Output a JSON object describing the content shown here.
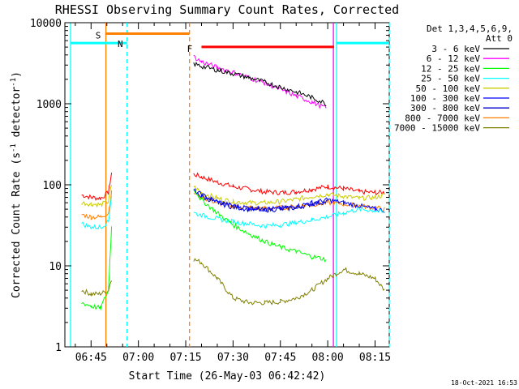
{
  "chart_data": {
    "type": "line",
    "title": "RHESSI Observing Summary Count Rates, Corrected",
    "xlabel": "Start Time (26-May-03 06:42:42)",
    "ylabel_main": "Corrected Count Rate (s",
    "ylabel_sup1": "-1",
    "ylabel_mid": " detector",
    "ylabel_sup2": "-1",
    "ylabel_end": ")",
    "y_scale": "log",
    "ylim": [
      1,
      10000
    ],
    "xlim_minutes": [
      6.7,
      99.5
    ],
    "x_ticks": [
      {
        "label": "06:45",
        "minute": 45
      },
      {
        "label": "07:00",
        "minute": 60
      },
      {
        "label": "07:15",
        "minute": 75
      },
      {
        "label": "07:30",
        "minute": 90
      },
      {
        "label": "07:45",
        "minute": 105
      },
      {
        "label": "08:00",
        "minute": 120
      },
      {
        "label": "08:15",
        "minute": 135
      }
    ],
    "y_ticks": [
      {
        "label": "1",
        "value": 1
      },
      {
        "label": "10",
        "value": 10
      },
      {
        "label": "100",
        "value": 100
      },
      {
        "label": "1000",
        "value": 1000
      },
      {
        "label": "10000",
        "value": 10000
      }
    ],
    "legend_header1": "Det 1,3,4,5,6,9,",
    "legend_header2": "Att 0",
    "legend_position": "right",
    "series": [
      {
        "name": "3 - 6 keV",
        "color": "#000000",
        "x": [
          77.5,
          80,
          85,
          90,
          95,
          100,
          105,
          110,
          115,
          119.5
        ],
        "y": [
          3100,
          2900,
          2600,
          2350,
          2100,
          1850,
          1600,
          1400,
          1200,
          1000
        ]
      },
      {
        "name": "6 - 12 keV",
        "color": "#ff00ff",
        "x": [
          77.5,
          80,
          85,
          90,
          95,
          100,
          105,
          110,
          115,
          119.5
        ],
        "y": [
          3800,
          3300,
          2800,
          2450,
          2100,
          1800,
          1500,
          1250,
          1050,
          880
        ]
      },
      {
        "name": "12 - 25 keV",
        "color": "#00ff00",
        "x": [
          42,
          45,
          48,
          50.5,
          51.5,
          77.5,
          80,
          85,
          90,
          95,
          100,
          105,
          110,
          115,
          119.5
        ],
        "y": [
          3.5,
          3.2,
          3,
          5,
          30,
          90,
          65,
          45,
          32,
          25,
          20,
          17,
          15,
          13,
          12
        ]
      },
      {
        "name": "25 - 50 keV",
        "color": "#00ffff",
        "x": [
          42,
          45,
          48,
          50.5,
          51.5,
          77.5,
          80,
          85,
          90,
          95,
          100,
          105,
          110,
          115,
          120,
          125,
          130,
          135,
          138
        ],
        "y": [
          33,
          30,
          30,
          35,
          75,
          45,
          42,
          38,
          35,
          33,
          31,
          32,
          34,
          37,
          40,
          45,
          50,
          48,
          45
        ]
      },
      {
        "name": "50 - 100 keV",
        "color": "#cccc00",
        "x": [
          42,
          45,
          48,
          50.5,
          51.5,
          77.5,
          80,
          85,
          90,
          95,
          100,
          105,
          110,
          115,
          120,
          125,
          130,
          135,
          138
        ],
        "y": [
          60,
          58,
          57,
          62,
          100,
          95,
          80,
          68,
          62,
          60,
          60,
          62,
          66,
          72,
          76,
          72,
          68,
          70,
          75
        ]
      },
      {
        "name": "100 - 300 keV",
        "color": "#0000ff",
        "x": [
          77.5,
          80,
          85,
          90,
          95,
          100,
          105,
          110,
          115,
          120,
          125,
          130,
          135,
          138
        ],
        "y": [
          85,
          75,
          62,
          55,
          52,
          50,
          51,
          54,
          60,
          65,
          60,
          55,
          50,
          48
        ]
      },
      {
        "name": "300 - 800 keV",
        "color": "#0000cc",
        "x": [
          77.5,
          80,
          85,
          90,
          95,
          100,
          105,
          110,
          115,
          120
        ],
        "y": [
          82,
          72,
          60,
          53,
          50,
          49,
          50,
          52,
          58,
          62
        ]
      },
      {
        "name": "800 - 7000 keV",
        "color": "#ff8000",
        "x": [
          42,
          45,
          48,
          50.5,
          51.5,
          77.5,
          80,
          85,
          90,
          95,
          100,
          105,
          110,
          115,
          120,
          125,
          130,
          135,
          138
        ],
        "y": [
          43,
          40,
          40,
          45,
          80,
          80,
          70,
          60,
          54,
          52,
          51,
          52,
          54,
          57,
          60,
          58,
          55,
          52,
          50
        ]
      },
      {
        "name": "7000 - 15000 keV",
        "color": "#808000",
        "x": [
          42,
          45,
          48,
          50.5,
          51.5,
          77.5,
          80,
          85,
          90,
          95,
          100,
          105,
          110,
          115,
          120,
          125,
          130,
          135,
          138
        ],
        "y": [
          5,
          4.5,
          4.5,
          5,
          7,
          12,
          11,
          7,
          4,
          3.5,
          3.5,
          3.6,
          4,
          5,
          7,
          9,
          8,
          7,
          5
        ]
      },
      {
        "name": "red_top",
        "color": "#ff0000",
        "x": [
          42,
          45,
          48,
          50.5,
          51.5,
          77.5,
          80,
          85,
          90,
          95,
          100,
          105,
          110,
          115,
          120,
          125,
          130,
          135,
          138
        ],
        "y": [
          75,
          70,
          68,
          80,
          140,
          135,
          125,
          108,
          95,
          88,
          82,
          80,
          82,
          88,
          95,
          90,
          82,
          80,
          80
        ]
      }
    ],
    "annotations": [
      {
        "label": "S",
        "color": "#ff8000",
        "x": 49.5,
        "y": 7000,
        "bar_from": 49.5,
        "bar_to": 76.2
      },
      {
        "label": "N",
        "color": "#00ffff",
        "x": 56.5,
        "y": 5500
      },
      {
        "label": "F",
        "color": "#ff0000",
        "x": 78.5,
        "y": 4800,
        "bar_from": 80,
        "bar_to": 122
      }
    ],
    "saa_bars": [
      {
        "color": "#00ffff",
        "from": 38.5,
        "to": 56.4,
        "y": 5600
      },
      {
        "color": "#00ffff",
        "from": 122.8,
        "to": 139.5,
        "y": 5600
      }
    ],
    "vertical_lines": [
      {
        "color": "#00ffff",
        "x": 38.5,
        "style": "solid"
      },
      {
        "color": "#ff8000",
        "x": 49.7,
        "style": "solid"
      },
      {
        "color": "#00ffff",
        "x": 56.4,
        "style": "dashed"
      },
      {
        "color": "#ff8000",
        "x": 76.2,
        "style": "dashed"
      },
      {
        "color": "#00ffff",
        "x": 122.8,
        "style": "solid"
      },
      {
        "color": "#00ffff",
        "x": 139.5,
        "style": "dashed"
      },
      {
        "color": "#ff00ff",
        "x": 121.8,
        "style": "solid"
      }
    ],
    "footer_date": "18-Oct-2021 16:53"
  }
}
